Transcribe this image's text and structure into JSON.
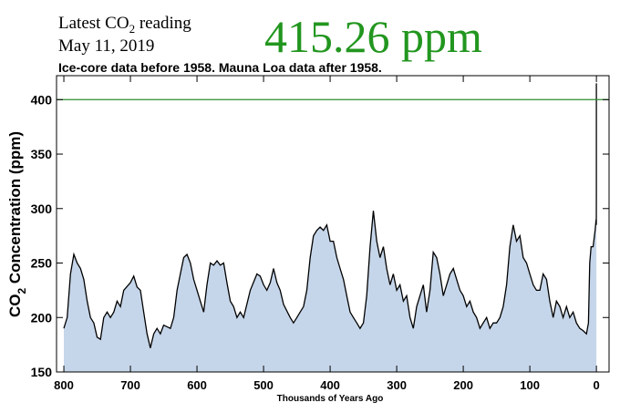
{
  "header": {
    "reading_label": [
      "Latest CO",
      "2",
      " reading"
    ],
    "date": "May 11, 2019",
    "reading": "415.26 ppm"
  },
  "chart_data": {
    "type": "area",
    "title": "Ice-core data before 1958. Mauna Loa data after 1958.",
    "xlabel": "Thousands of Years Ago",
    "ylabel": [
      "CO",
      "2",
      " Concentration (ppm)"
    ],
    "xlim": [
      811,
      -19
    ],
    "ylim": [
      150,
      422
    ],
    "xticks": [
      800,
      700,
      600,
      500,
      400,
      300,
      200,
      100,
      0
    ],
    "yticks": [
      150,
      200,
      250,
      300,
      350,
      400
    ],
    "fill_color": "#c6d6ea",
    "line_color": "#000000",
    "reference_line": 400,
    "reference_color": "#2e8b2e",
    "x": [
      800,
      795,
      790,
      785,
      780,
      775,
      770,
      765,
      760,
      755,
      750,
      745,
      740,
      735,
      730,
      725,
      720,
      715,
      710,
      700,
      695,
      690,
      685,
      680,
      675,
      670,
      665,
      660,
      655,
      650,
      640,
      635,
      630,
      625,
      620,
      615,
      610,
      605,
      600,
      595,
      590,
      585,
      580,
      575,
      570,
      565,
      560,
      555,
      550,
      545,
      540,
      535,
      530,
      520,
      510,
      505,
      500,
      495,
      490,
      485,
      480,
      475,
      470,
      460,
      455,
      450,
      445,
      440,
      435,
      430,
      425,
      420,
      415,
      410,
      405,
      400,
      395,
      390,
      385,
      380,
      375,
      370,
      365,
      360,
      355,
      350,
      345,
      340,
      335,
      330,
      325,
      320,
      315,
      310,
      305,
      300,
      295,
      290,
      285,
      280,
      275,
      270,
      265,
      260,
      255,
      250,
      245,
      240,
      235,
      230,
      225,
      220,
      215,
      210,
      205,
      200,
      195,
      190,
      185,
      180,
      175,
      170,
      165,
      160,
      155,
      150,
      145,
      140,
      135,
      130,
      125,
      120,
      115,
      110,
      105,
      100,
      95,
      90,
      85,
      80,
      75,
      70,
      65,
      60,
      55,
      50,
      45,
      40,
      35,
      30,
      25,
      20,
      15,
      12,
      10,
      8,
      5,
      2,
      0.5,
      0.2,
      0.05,
      0
    ],
    "values": [
      190,
      200,
      240,
      258,
      250,
      245,
      235,
      215,
      200,
      195,
      182,
      180,
      200,
      205,
      200,
      205,
      215,
      210,
      225,
      232,
      238,
      228,
      225,
      205,
      185,
      172,
      185,
      190,
      185,
      193,
      190,
      200,
      225,
      240,
      255,
      258,
      250,
      235,
      225,
      215,
      205,
      230,
      250,
      248,
      252,
      248,
      250,
      232,
      215,
      210,
      200,
      205,
      200,
      225,
      240,
      238,
      230,
      225,
      232,
      245,
      232,
      225,
      212,
      200,
      195,
      200,
      205,
      210,
      225,
      255,
      275,
      280,
      283,
      280,
      285,
      270,
      270,
      255,
      245,
      235,
      220,
      205,
      200,
      195,
      190,
      195,
      220,
      265,
      298,
      270,
      255,
      265,
      245,
      230,
      240,
      225,
      230,
      215,
      220,
      200,
      190,
      210,
      220,
      230,
      205,
      225,
      260,
      255,
      240,
      220,
      230,
      240,
      245,
      235,
      225,
      220,
      210,
      215,
      205,
      200,
      190,
      195,
      200,
      190,
      195,
      195,
      200,
      210,
      230,
      265,
      285,
      270,
      275,
      255,
      250,
      240,
      230,
      225,
      225,
      240,
      235,
      215,
      200,
      215,
      210,
      200,
      210,
      200,
      205,
      195,
      190,
      188,
      185,
      195,
      250,
      265,
      265,
      280,
      290,
      285,
      315,
      415
    ]
  }
}
